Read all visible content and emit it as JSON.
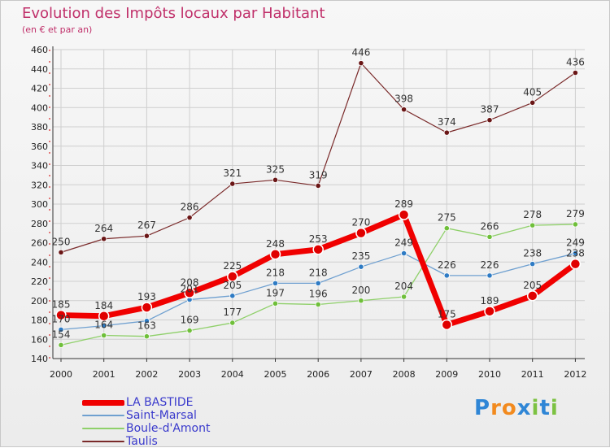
{
  "chart_data": {
    "type": "line",
    "title": "Evolution des Impôts locaux par Habitant",
    "subtitle": "(en € et par an)",
    "xlabel": "",
    "ylabel": "",
    "ylim": [
      140,
      460
    ],
    "yticks": [
      140,
      160,
      180,
      200,
      220,
      240,
      260,
      280,
      300,
      320,
      340,
      360,
      380,
      400,
      420,
      440,
      460
    ],
    "categories": [
      "2000",
      "2001",
      "2002",
      "2003",
      "2004",
      "2005",
      "2006",
      "2007",
      "2008",
      "2009",
      "2010",
      "2011",
      "2012"
    ],
    "grid": true,
    "legend_position": "bottom-left",
    "series": [
      {
        "name": "Taulis",
        "color": "#7a2a2a",
        "point_color": "#6a1616",
        "width": 1.2,
        "radius": 3.2,
        "values": [
          250,
          264,
          267,
          286,
          321,
          325,
          319,
          446,
          398,
          374,
          387,
          405,
          436
        ]
      },
      {
        "name": "Boule-d'Amont",
        "color": "#8fd06a",
        "point_color": "#6fbf3a",
        "width": 1.3,
        "radius": 3.2,
        "values": [
          154,
          164,
          163,
          169,
          177,
          197,
          196,
          200,
          204,
          275,
          266,
          278,
          279
        ]
      },
      {
        "name": "Saint-Marsal",
        "color": "#6fa0d0",
        "point_color": "#2e7bc4",
        "width": 1.3,
        "radius": 3.2,
        "values": [
          170,
          174,
          179,
          201,
          205,
          218,
          218,
          235,
          249,
          226,
          226,
          238,
          249
        ]
      },
      {
        "name": "LA BASTIDE",
        "color": "#f00000",
        "point_color": "#e00000",
        "width": 7,
        "radius": 6,
        "values": [
          185,
          184,
          193,
          208,
          225,
          248,
          253,
          270,
          289,
          175,
          189,
          205,
          238
        ]
      }
    ],
    "data_labels": [
      {
        "series": "Taulis",
        "index": 0,
        "text": "250"
      },
      {
        "series": "Taulis",
        "index": 1,
        "text": "264"
      },
      {
        "series": "Taulis",
        "index": 2,
        "text": "267"
      },
      {
        "series": "Taulis",
        "index": 3,
        "text": "286"
      },
      {
        "series": "Taulis",
        "index": 4,
        "text": "321"
      },
      {
        "series": "Taulis",
        "index": 5,
        "text": "325"
      },
      {
        "series": "Taulis",
        "index": 6,
        "text": "319"
      },
      {
        "series": "Taulis",
        "index": 7,
        "text": "446"
      },
      {
        "series": "Taulis",
        "index": 8,
        "text": "398"
      },
      {
        "series": "Taulis",
        "index": 9,
        "text": "374"
      },
      {
        "series": "Taulis",
        "index": 10,
        "text": "387"
      },
      {
        "series": "Taulis",
        "index": 11,
        "text": "405"
      },
      {
        "series": "Taulis",
        "index": 12,
        "text": "436"
      },
      {
        "series": "Boule-d'Amont",
        "index": 0,
        "text": "154"
      },
      {
        "series": "Boule-d'Amont",
        "index": 1,
        "text": "164"
      },
      {
        "series": "Boule-d'Amont",
        "index": 2,
        "text": "163"
      },
      {
        "series": "Boule-d'Amont",
        "index": 3,
        "text": "169"
      },
      {
        "series": "Boule-d'Amont",
        "index": 4,
        "text": "177"
      },
      {
        "series": "Boule-d'Amont",
        "index": 5,
        "text": "197"
      },
      {
        "series": "Boule-d'Amont",
        "index": 6,
        "text": "196"
      },
      {
        "series": "Boule-d'Amont",
        "index": 7,
        "text": "200"
      },
      {
        "series": "Boule-d'Amont",
        "index": 8,
        "text": "204"
      },
      {
        "series": "Boule-d'Amont",
        "index": 9,
        "text": "275"
      },
      {
        "series": "Boule-d'Amont",
        "index": 10,
        "text": "266"
      },
      {
        "series": "Boule-d'Amont",
        "index": 11,
        "text": "278"
      },
      {
        "series": "Boule-d'Amont",
        "index": 12,
        "text": "279"
      },
      {
        "series": "Saint-Marsal",
        "index": 0,
        "text": "170"
      },
      {
        "series": "Saint-Marsal",
        "index": 3,
        "text": "201"
      },
      {
        "series": "Saint-Marsal",
        "index": 4,
        "text": "205"
      },
      {
        "series": "Saint-Marsal",
        "index": 5,
        "text": "218"
      },
      {
        "series": "Saint-Marsal",
        "index": 6,
        "text": "218"
      },
      {
        "series": "Saint-Marsal",
        "index": 7,
        "text": "235"
      },
      {
        "series": "Saint-Marsal",
        "index": 8,
        "text": "249"
      },
      {
        "series": "Saint-Marsal",
        "index": 9,
        "text": "226"
      },
      {
        "series": "Saint-Marsal",
        "index": 10,
        "text": "226"
      },
      {
        "series": "Saint-Marsal",
        "index": 11,
        "text": "238"
      },
      {
        "series": "Saint-Marsal",
        "index": 12,
        "text": "249"
      },
      {
        "series": "LA BASTIDE",
        "index": 0,
        "text": "185"
      },
      {
        "series": "LA BASTIDE",
        "index": 1,
        "text": "184"
      },
      {
        "series": "LA BASTIDE",
        "index": 2,
        "text": "193"
      },
      {
        "series": "LA BASTIDE",
        "index": 3,
        "text": "208"
      },
      {
        "series": "LA BASTIDE",
        "index": 4,
        "text": "225"
      },
      {
        "series": "LA BASTIDE",
        "index": 5,
        "text": "248"
      },
      {
        "series": "LA BASTIDE",
        "index": 6,
        "text": "253"
      },
      {
        "series": "LA BASTIDE",
        "index": 7,
        "text": "270"
      },
      {
        "series": "LA BASTIDE",
        "index": 8,
        "text": "289"
      },
      {
        "series": "LA BASTIDE",
        "index": 9,
        "text": "175"
      },
      {
        "series": "LA BASTIDE",
        "index": 10,
        "text": "189"
      },
      {
        "series": "LA BASTIDE",
        "index": 11,
        "text": "205"
      },
      {
        "series": "LA BASTIDE",
        "index": 12,
        "text": "238"
      }
    ],
    "legend": [
      {
        "name": "LA BASTIDE",
        "color": "#f00000",
        "thickness": 7
      },
      {
        "name": "Saint-Marsal",
        "color": "#6fa0d0",
        "thickness": 2
      },
      {
        "name": "Boule-d'Amont",
        "color": "#8fd06a",
        "thickness": 2
      },
      {
        "name": "Taulis",
        "color": "#7a2a2a",
        "thickness": 2
      }
    ]
  },
  "logo": {
    "text": "Proxiti",
    "letter_colors": [
      "#2f86d6",
      "#f28a1e",
      "#f28a1e",
      "#2f86d6",
      "#7cc242",
      "#2f86d6",
      "#7cc242"
    ]
  }
}
